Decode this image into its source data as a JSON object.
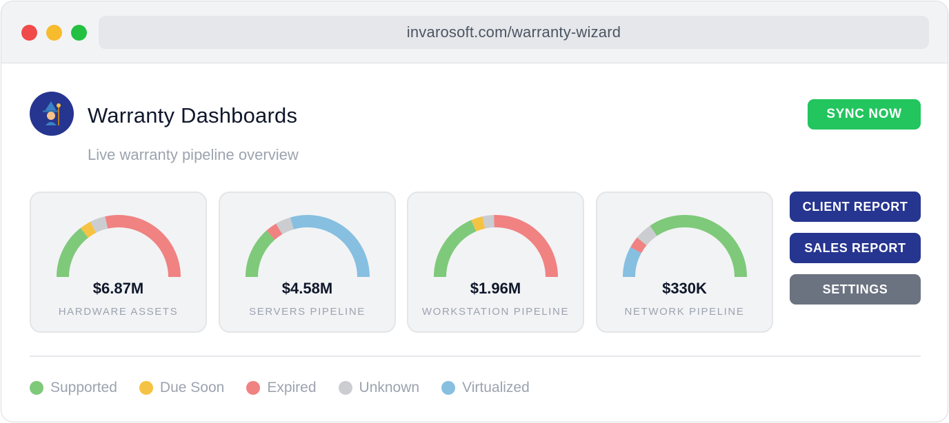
{
  "browser": {
    "url": "invarosoft.com/warranty-wizard"
  },
  "header": {
    "avatar_icon": "wizard-icon",
    "title": "Warranty Dashboards",
    "subtitle": "Live warranty pipeline overview",
    "sync_label": "SYNC NOW"
  },
  "actions": {
    "client_report_label": "CLIENT REPORT",
    "sales_report_label": "SALES REPORT",
    "settings_label": "SETTINGS"
  },
  "colors": {
    "supported": "#7ec97a",
    "due_soon": "#f5c343",
    "expired": "#f08282",
    "unknown": "#cbcdd1",
    "virtualized": "#86bfe0",
    "primary_button": "#26358f",
    "sync_button": "#22c55e",
    "settings_button": "#6b7280"
  },
  "gauges": [
    {
      "value": "$6.87M",
      "label": "HARDWARE ASSETS",
      "segments": [
        {
          "status": "supported",
          "fraction": 0.29
        },
        {
          "status": "due_soon",
          "fraction": 0.06
        },
        {
          "status": "unknown",
          "fraction": 0.08
        },
        {
          "status": "expired",
          "fraction": 0.57
        }
      ]
    },
    {
      "value": "$4.58M",
      "label": "SERVERS PIPELINE",
      "segments": [
        {
          "status": "supported",
          "fraction": 0.27
        },
        {
          "status": "expired",
          "fraction": 0.06
        },
        {
          "status": "unknown",
          "fraction": 0.08
        },
        {
          "status": "virtualized",
          "fraction": 0.59
        }
      ]
    },
    {
      "value": "$1.96M",
      "label": "WORKSTATION PIPELINE",
      "segments": [
        {
          "status": "supported",
          "fraction": 0.37
        },
        {
          "status": "due_soon",
          "fraction": 0.06
        },
        {
          "status": "unknown",
          "fraction": 0.06
        },
        {
          "status": "expired",
          "fraction": 0.51
        }
      ]
    },
    {
      "value": "$330K",
      "label": "NETWORK PIPELINE",
      "segments": [
        {
          "status": "virtualized",
          "fraction": 0.16
        },
        {
          "status": "expired",
          "fraction": 0.06
        },
        {
          "status": "unknown",
          "fraction": 0.09
        },
        {
          "status": "supported",
          "fraction": 0.69
        }
      ]
    }
  ],
  "legend": [
    {
      "status": "supported",
      "label": "Supported"
    },
    {
      "status": "due_soon",
      "label": "Due Soon"
    },
    {
      "status": "expired",
      "label": "Expired"
    },
    {
      "status": "unknown",
      "label": "Unknown"
    },
    {
      "status": "virtualized",
      "label": "Virtualized"
    }
  ]
}
